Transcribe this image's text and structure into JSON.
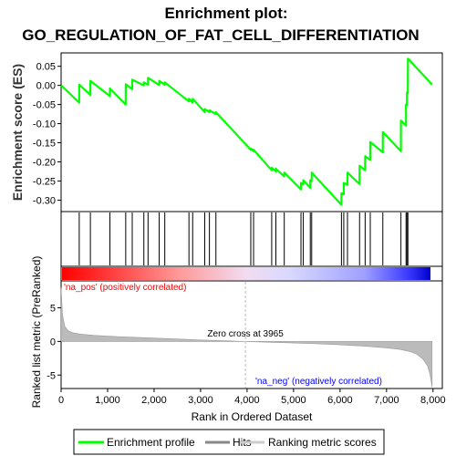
{
  "chart_data": {
    "type": "line",
    "title_line1": "Enrichment plot:",
    "title_line2": "GO_REGULATION_OF_FAT_CELL_DIFFERENTIATION",
    "colors": {
      "enrichment": "#00ff00",
      "hits": "#000000",
      "metric_fill": "#bbbbbb",
      "pos_label": "#ff0000",
      "neg_label": "#0000ff",
      "zero_line": "#bbbbbb"
    },
    "x_axis": {
      "label": "Rank in Ordered Dataset",
      "range": [
        0,
        8200
      ],
      "ticks": [
        0,
        1000,
        2000,
        3000,
        4000,
        5000,
        6000,
        7000,
        8000
      ]
    },
    "es_axis": {
      "label": "Enrichment score (ES)",
      "range": [
        -0.33,
        0.085
      ],
      "ticks": [
        0.05,
        0.0,
        -0.05,
        -0.1,
        -0.15,
        -0.2,
        -0.25,
        -0.3
      ]
    },
    "metric_axis": {
      "label": "Ranked list metric (PreRanked)",
      "range": [
        -7,
        9
      ],
      "ticks": [
        5,
        0,
        -5
      ]
    },
    "annotations": {
      "pos_label": "'na_pos' (positively correlated)",
      "neg_label": "'na_neg' (negatively correlated)",
      "zero_cross": "Zero cross at 3965",
      "zero_cross_rank": 3965
    },
    "total_genes": 7980,
    "hits": [
      390,
      630,
      1050,
      1390,
      1530,
      1780,
      1870,
      2110,
      2230,
      2750,
      2830,
      3090,
      3190,
      3330,
      4080,
      4140,
      4530,
      4620,
      4800,
      5160,
      5210,
      5360,
      5390,
      6030,
      6080,
      6160,
      6420,
      6540,
      6650,
      6920,
      7310,
      7420,
      7440,
      7460
    ],
    "es_profile": [
      [
        0,
        0.0
      ],
      [
        389,
        -0.045
      ],
      [
        390,
        0.002
      ],
      [
        629,
        -0.025
      ],
      [
        630,
        0.012
      ],
      [
        1049,
        -0.028
      ],
      [
        1050,
        -0.008
      ],
      [
        1389,
        -0.05
      ],
      [
        1390,
        0.003
      ],
      [
        1529,
        -0.01
      ],
      [
        1530,
        0.015
      ],
      [
        1779,
        0.0
      ],
      [
        1780,
        0.008
      ],
      [
        1869,
        0.002
      ],
      [
        1870,
        0.02
      ],
      [
        2109,
        0.001
      ],
      [
        2110,
        0.012
      ],
      [
        2229,
        0.002
      ],
      [
        2230,
        0.008
      ],
      [
        2749,
        -0.042
      ],
      [
        2750,
        -0.035
      ],
      [
        2829,
        -0.045
      ],
      [
        2830,
        -0.035
      ],
      [
        3089,
        -0.07
      ],
      [
        3090,
        -0.062
      ],
      [
        3189,
        -0.07
      ],
      [
        3190,
        -0.065
      ],
      [
        3329,
        -0.075
      ],
      [
        3330,
        -0.07
      ],
      [
        4079,
        -0.168
      ],
      [
        4080,
        -0.165
      ],
      [
        4139,
        -0.172
      ],
      [
        4140,
        -0.168
      ],
      [
        4529,
        -0.222
      ],
      [
        4530,
        -0.215
      ],
      [
        4619,
        -0.225
      ],
      [
        4620,
        -0.218
      ],
      [
        4799,
        -0.238
      ],
      [
        4800,
        -0.228
      ],
      [
        5159,
        -0.272
      ],
      [
        5160,
        -0.255
      ],
      [
        5209,
        -0.258
      ],
      [
        5210,
        -0.248
      ],
      [
        5359,
        -0.268
      ],
      [
        5360,
        -0.248
      ],
      [
        5389,
        -0.25
      ],
      [
        5390,
        -0.228
      ],
      [
        6029,
        -0.312
      ],
      [
        6030,
        -0.282
      ],
      [
        6079,
        -0.285
      ],
      [
        6080,
        -0.255
      ],
      [
        6159,
        -0.26
      ],
      [
        6160,
        -0.228
      ],
      [
        6419,
        -0.258
      ],
      [
        6420,
        -0.21
      ],
      [
        6539,
        -0.222
      ],
      [
        6540,
        -0.185
      ],
      [
        6649,
        -0.195
      ],
      [
        6650,
        -0.148
      ],
      [
        6919,
        -0.175
      ],
      [
        6920,
        -0.122
      ],
      [
        7309,
        -0.172
      ],
      [
        7310,
        -0.092
      ],
      [
        7419,
        -0.105
      ],
      [
        7420,
        -0.05
      ],
      [
        7439,
        -0.052
      ],
      [
        7440,
        -0.018
      ],
      [
        7459,
        -0.02
      ],
      [
        7460,
        0.07
      ],
      [
        7980,
        0.002
      ]
    ],
    "metric_curve": [
      [
        0,
        8.0
      ],
      [
        30,
        4.0
      ],
      [
        80,
        2.2
      ],
      [
        150,
        1.6
      ],
      [
        250,
        1.3
      ],
      [
        400,
        1.1
      ],
      [
        700,
        0.9
      ],
      [
        1000,
        0.78
      ],
      [
        1500,
        0.63
      ],
      [
        2000,
        0.5
      ],
      [
        2500,
        0.36
      ],
      [
        3000,
        0.22
      ],
      [
        3500,
        0.1
      ],
      [
        3965,
        0.0
      ],
      [
        4500,
        -0.12
      ],
      [
        5000,
        -0.24
      ],
      [
        5500,
        -0.36
      ],
      [
        6000,
        -0.5
      ],
      [
        6500,
        -0.68
      ],
      [
        7000,
        -0.95
      ],
      [
        7300,
        -1.2
      ],
      [
        7500,
        -1.5
      ],
      [
        7650,
        -1.9
      ],
      [
        7780,
        -2.6
      ],
      [
        7880,
        -3.6
      ],
      [
        7940,
        -5.0
      ],
      [
        7980,
        -6.8
      ]
    ]
  },
  "legend": {
    "items": [
      {
        "label": "Enrichment profile",
        "swatch_color": "#00ff00"
      },
      {
        "label": "Hits",
        "swatch_color": "#888888"
      },
      {
        "label": "Ranking metric scores",
        "swatch_color": "#cccccc"
      }
    ]
  }
}
